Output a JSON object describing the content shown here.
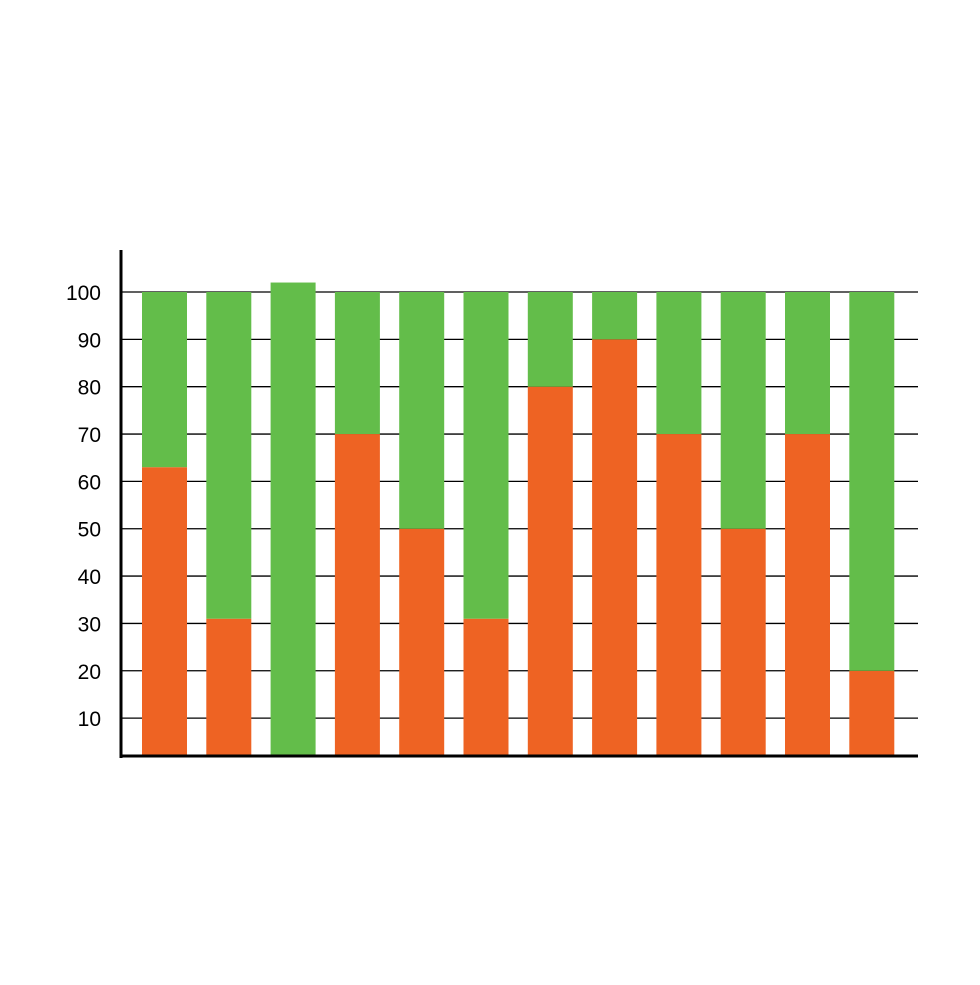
{
  "chart_data": {
    "type": "bar",
    "stacked": true,
    "categories": [
      "",
      "",
      "",
      "",
      "",
      "",
      "",
      "",
      "",
      "",
      "",
      ""
    ],
    "series": [
      {
        "values": [
          63,
          31,
          0,
          70,
          50,
          31,
          80,
          90,
          70,
          50,
          70,
          20
        ],
        "color": "#ee6323"
      },
      {
        "values": [
          37,
          69,
          100,
          30,
          50,
          69,
          20,
          10,
          30,
          50,
          30,
          80
        ],
        "color": "#63bd4a"
      }
    ],
    "y_ticks": [
      10,
      20,
      30,
      40,
      50,
      60,
      70,
      80,
      90,
      100
    ],
    "ylim": [
      2,
      100
    ],
    "grid": true,
    "legend": "none",
    "title": "",
    "xlabel": "",
    "ylabel": "",
    "axis_color": "#000000",
    "grid_color": "#000000"
  }
}
